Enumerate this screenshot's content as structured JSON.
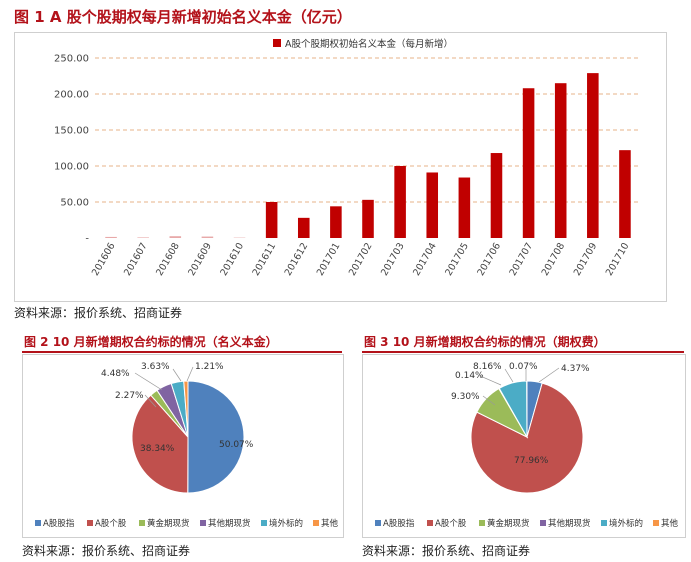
{
  "figure1": {
    "title": "图 1 A 股个股期权每月新增初始名义本金（亿元）",
    "source": "资料来源：报价系统、招商证券"
  },
  "figure2": {
    "title": "图 2 10 月新增期权合约标的情况（名义本金）",
    "source": "资料来源：报价系统、招商证券"
  },
  "figure3": {
    "title": "图 3 10 月新增期权合约标的情况（期权费）",
    "source": "资料来源：报价系统、招商证券"
  },
  "colors": {
    "bar": "#c00000",
    "slices": [
      "#4f81bd",
      "#c0504d",
      "#9bbb59",
      "#8064a2",
      "#4bacc6",
      "#f79646"
    ],
    "title_red": "#b3121a"
  },
  "chart_data": [
    {
      "type": "bar",
      "title": "图 1 A 股个股期权每月新增初始名义本金（亿元）",
      "legend": "A股个股期权初始名义本金（每月新增）",
      "legend_position": "top",
      "categories": [
        "201606",
        "201607",
        "201608",
        "201609",
        "201610",
        "201611",
        "201612",
        "201701",
        "201702",
        "201703",
        "201704",
        "201705",
        "201706",
        "201707",
        "201708",
        "201709",
        "201710"
      ],
      "values": [
        1.5,
        0.8,
        2.5,
        2.0,
        0.5,
        50,
        28,
        44,
        53,
        100,
        91,
        84,
        118,
        208,
        215,
        229,
        122
      ],
      "ylim": [
        0,
        250
      ],
      "yticks": [
        "-",
        "50.00",
        "100.00",
        "150.00",
        "200.00",
        "250.00"
      ],
      "grid": true
    },
    {
      "type": "pie",
      "title": "图 2 10 月新增期权合约标的情况（名义本金）",
      "labels": [
        "A股股指",
        "A股个股",
        "黄金期现货",
        "其他期现货",
        "境外标的",
        "其他"
      ],
      "values": [
        50.07,
        38.34,
        2.27,
        4.48,
        3.63,
        1.21
      ],
      "value_labels": [
        "50.07%",
        "38.34%",
        "2.27%",
        "4.48%",
        "3.63%",
        "1.21%"
      ],
      "legend_position": "bottom"
    },
    {
      "type": "pie",
      "title": "图 3 10 月新增期权合约标的情况（期权费）",
      "labels": [
        "A股股指",
        "A股个股",
        "黄金期现货",
        "其他期现货",
        "境外标的",
        "其他"
      ],
      "values": [
        4.37,
        77.96,
        9.3,
        0.14,
        8.16,
        0.07
      ],
      "value_labels": [
        "4.37%",
        "77.96%",
        "9.30%",
        "0.14%",
        "8.16%",
        "0.07%"
      ],
      "legend_position": "bottom"
    }
  ]
}
